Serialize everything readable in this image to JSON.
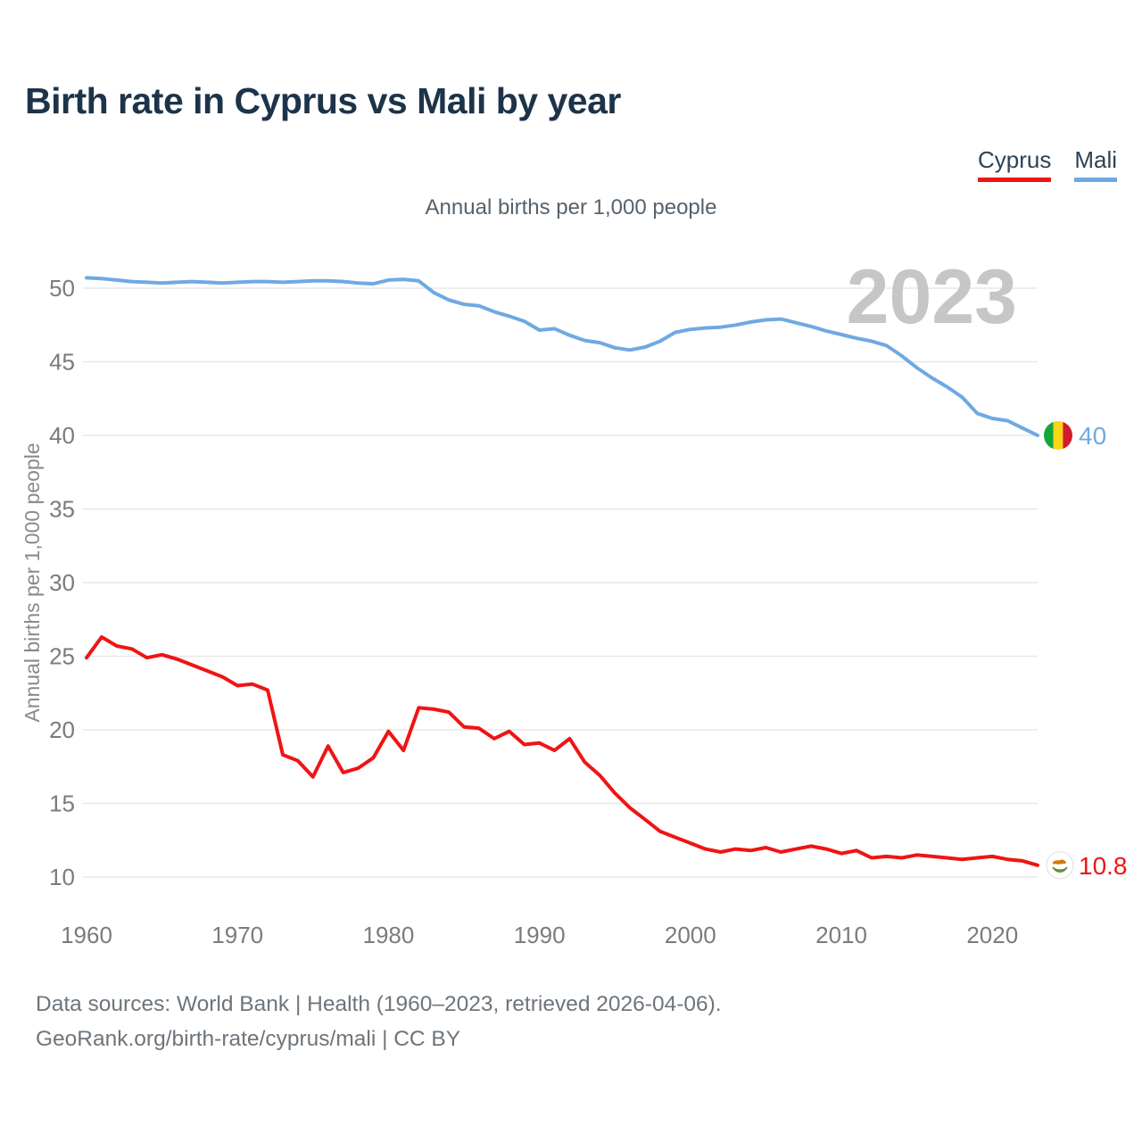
{
  "page": {
    "title": "Birth rate in Cyprus vs Mali by year"
  },
  "legend": {
    "items": [
      {
        "label": "Cyprus"
      },
      {
        "label": "Mali"
      }
    ]
  },
  "chart_data": {
    "type": "line",
    "title": "Annual births per 1,000 people",
    "ylabel": "Annual births per 1,000 people",
    "xlabel": "",
    "watermark": "2023",
    "grid": "horizontal",
    "legend_position": "top-right",
    "ylim": [
      10,
      50
    ],
    "xlim": [
      1960,
      2023
    ],
    "yticks": [
      10,
      15,
      20,
      25,
      30,
      35,
      40,
      45,
      50
    ],
    "xticks": [
      1960,
      1970,
      1980,
      1990,
      2000,
      2010,
      2020
    ],
    "x": [
      1960,
      1961,
      1962,
      1963,
      1964,
      1965,
      1966,
      1967,
      1968,
      1969,
      1970,
      1971,
      1972,
      1973,
      1974,
      1975,
      1976,
      1977,
      1978,
      1979,
      1980,
      1981,
      1982,
      1983,
      1984,
      1985,
      1986,
      1987,
      1988,
      1989,
      1990,
      1991,
      1992,
      1993,
      1994,
      1995,
      1996,
      1997,
      1998,
      1999,
      2000,
      2001,
      2002,
      2003,
      2004,
      2005,
      2006,
      2007,
      2008,
      2009,
      2010,
      2011,
      2012,
      2013,
      2014,
      2015,
      2016,
      2017,
      2018,
      2019,
      2020,
      2021,
      2022,
      2023
    ],
    "series": [
      {
        "name": "Mali",
        "color": "#6fa9e2",
        "end_label": "40",
        "values": [
          50.7,
          50.65,
          50.55,
          50.45,
          50.4,
          50.35,
          50.4,
          50.45,
          50.4,
          50.35,
          50.4,
          50.45,
          50.45,
          50.4,
          50.45,
          50.5,
          50.5,
          50.45,
          50.35,
          50.3,
          50.55,
          50.6,
          50.5,
          49.7,
          49.2,
          48.9,
          48.8,
          48.4,
          48.1,
          47.75,
          47.15,
          47.25,
          46.8,
          46.45,
          46.3,
          45.95,
          45.8,
          46.0,
          46.4,
          47.0,
          47.2,
          47.3,
          47.35,
          47.5,
          47.7,
          47.85,
          47.9,
          47.65,
          47.4,
          47.1,
          46.85,
          46.6,
          46.4,
          46.1,
          45.4,
          44.6,
          43.9,
          43.3,
          42.6,
          41.5,
          41.15,
          41.0,
          40.5,
          40.0
        ]
      },
      {
        "name": "Cyprus",
        "color": "#f01414",
        "end_label": "10.8",
        "values": [
          24.9,
          26.3,
          25.7,
          25.5,
          24.9,
          25.1,
          24.8,
          24.4,
          24.0,
          23.6,
          23.0,
          23.1,
          22.7,
          18.3,
          17.9,
          16.8,
          18.9,
          17.1,
          17.4,
          18.1,
          19.9,
          18.6,
          21.5,
          21.4,
          21.2,
          20.2,
          20.1,
          19.4,
          19.9,
          19.0,
          19.1,
          18.6,
          19.4,
          17.8,
          16.9,
          15.7,
          14.7,
          13.9,
          13.1,
          12.7,
          12.3,
          11.9,
          11.7,
          11.9,
          11.8,
          12.0,
          11.7,
          11.9,
          12.1,
          11.9,
          11.6,
          11.8,
          11.3,
          11.4,
          11.3,
          11.5,
          11.4,
          11.3,
          11.2,
          11.3,
          11.4,
          11.2,
          11.1,
          10.8
        ]
      }
    ]
  },
  "theme": {
    "cyprus_red": "#f01414",
    "mali_blue": "#6fa9e2",
    "title_navy": "#1d3349",
    "axis_gray": "#7b7b7b",
    "axis_title_gray": "#8a8a8a",
    "watermark_gray": "#c6c6c6",
    "gridline": "#e8e8e8"
  },
  "flags": {
    "mali": {
      "green": "#14a63d",
      "yellow": "#f9d616",
      "red": "#d21c2b"
    },
    "cyprus": {
      "island": "#d57800",
      "branch": "#648c3c",
      "ring": "#dddddd"
    }
  },
  "footer": {
    "line1": "Data sources: World Bank | Health (1960–2023, retrieved 2026-04-06).",
    "line2": "GeoRank.org/birth-rate/cyprus/mali | CC BY"
  }
}
